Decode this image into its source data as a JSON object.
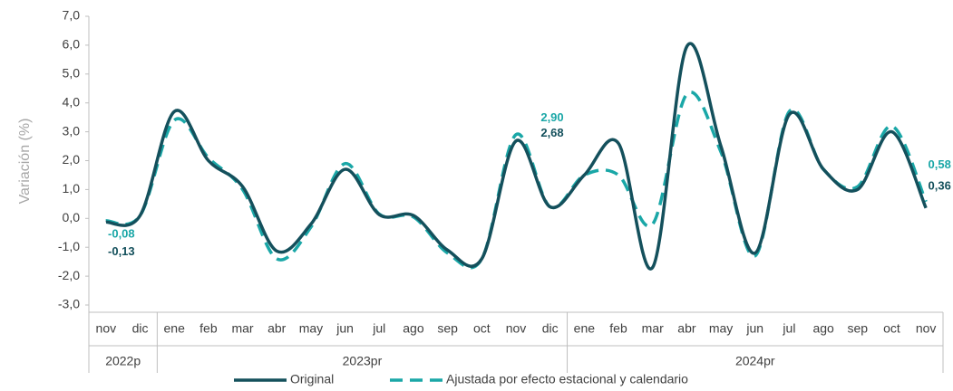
{
  "chart_data": {
    "type": "line",
    "y_label": "Variación (%)",
    "categories": [
      "nov",
      "dic",
      "ene",
      "feb",
      "mar",
      "abr",
      "may",
      "jun",
      "jul",
      "ago",
      "sep",
      "oct",
      "nov",
      "dic",
      "ene",
      "feb",
      "mar",
      "abr",
      "may",
      "jun",
      "jul",
      "ago",
      "sep",
      "oct",
      "nov"
    ],
    "groups": [
      {
        "label": "2022p",
        "count": 2
      },
      {
        "label": "2023pr",
        "count": 12
      },
      {
        "label": "2024pr",
        "count": 11
      }
    ],
    "series": [
      {
        "name": "Original",
        "color": "#14505c",
        "dash": false,
        "values": [
          -0.13,
          0.1,
          3.7,
          2.0,
          1.1,
          -1.13,
          -0.2,
          1.7,
          0.13,
          0.1,
          -1.1,
          -1.4,
          2.68,
          0.4,
          1.5,
          2.6,
          -1.7,
          5.95,
          2.5,
          -1.2,
          3.6,
          1.7,
          1.0,
          3.0,
          0.36
        ],
        "value_labels": [
          "-0,13",
          null,
          null,
          null,
          null,
          null,
          null,
          null,
          null,
          null,
          null,
          null,
          "2,68",
          null,
          null,
          null,
          null,
          null,
          null,
          null,
          null,
          null,
          null,
          null,
          "0,36"
        ]
      },
      {
        "name": "Ajustada por efecto estacional y calendario",
        "color": "#1aa7a7",
        "dash": true,
        "values": [
          -0.08,
          0.1,
          3.4,
          2.1,
          1.0,
          -1.4,
          -0.3,
          1.9,
          0.15,
          0.05,
          -1.2,
          -1.4,
          2.9,
          0.4,
          1.5,
          1.5,
          -0.2,
          4.3,
          2.3,
          -1.3,
          3.7,
          1.7,
          1.1,
          3.2,
          0.58
        ],
        "value_labels": [
          "-0,08",
          null,
          null,
          null,
          null,
          null,
          null,
          null,
          null,
          null,
          null,
          null,
          "2,90",
          null,
          null,
          null,
          null,
          null,
          null,
          null,
          null,
          null,
          null,
          null,
          "0,58"
        ]
      }
    ],
    "ylim": [
      -3,
      7
    ],
    "yticks": [
      {
        "value": -3,
        "label": "-3,0"
      },
      {
        "value": -2,
        "label": "-2,0"
      },
      {
        "value": -1,
        "label": "-1,0"
      },
      {
        "value": 0,
        "label": "0,0"
      },
      {
        "value": 1,
        "label": "1,0"
      },
      {
        "value": 2,
        "label": "2,0"
      },
      {
        "value": 3,
        "label": "3,0"
      },
      {
        "value": 4,
        "label": "4,0"
      },
      {
        "value": 5,
        "label": "5,0"
      },
      {
        "value": 6,
        "label": "6,0"
      },
      {
        "value": 7,
        "label": "7,0"
      }
    ],
    "grid": false,
    "legend": "bottom"
  }
}
